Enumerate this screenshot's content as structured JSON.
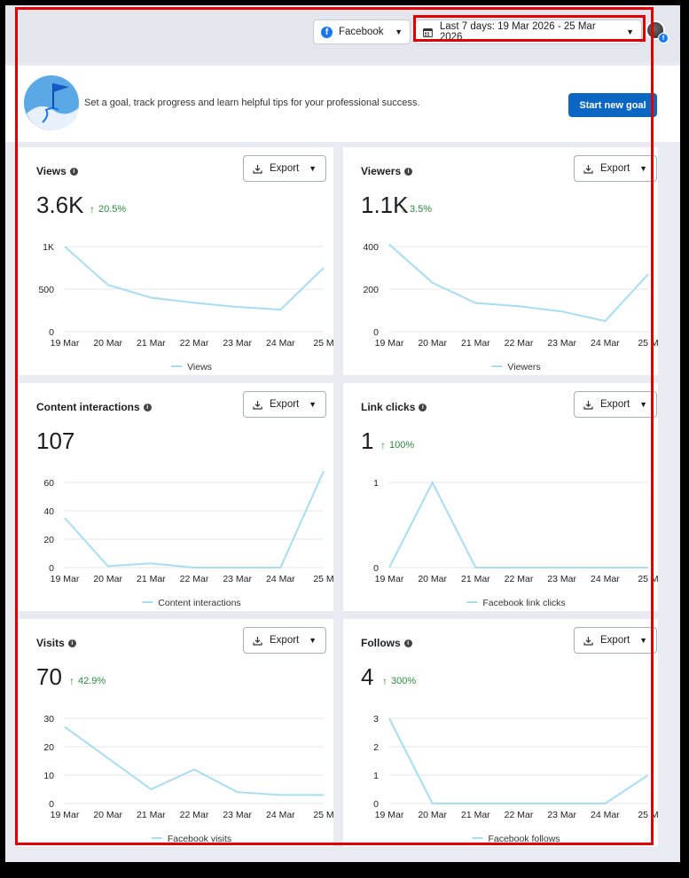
{
  "toolbar": {
    "platform_label": "Facebook",
    "date_range_label": "Last 7 days: 19 Mar 2026 - 25 Mar 2026"
  },
  "goal_banner": {
    "text": "Set a goal, track progress and learn helpful tips for your professional success.",
    "button_label": "Start new goal"
  },
  "export_label": "Export",
  "icons": {
    "platform": "facebook-icon",
    "calendar": "calendar-icon",
    "dropdown": "caret-down-icon",
    "info": "info-icon",
    "export": "download-icon",
    "trend": "arrow-up-icon"
  },
  "colors": {
    "accent": "#0b66c3",
    "line": "#a8dcf3",
    "positive": "#2b8a3e",
    "highlight": "#e00000"
  },
  "x_categories": [
    "19 Mar",
    "20 Mar",
    "21 Mar",
    "22 Mar",
    "23 Mar",
    "24 Mar",
    "25 M"
  ],
  "metrics": [
    {
      "id": "views",
      "title": "Views",
      "value": "3.6K",
      "delta": "20.5%",
      "chart_data": {
        "type": "line",
        "categories": [
          "19 Mar",
          "20 Mar",
          "21 Mar",
          "22 Mar",
          "23 Mar",
          "24 Mar",
          "25 M"
        ],
        "series": [
          {
            "name": "Views",
            "values": [
              1000,
              550,
              400,
              340,
              290,
              260,
              750
            ]
          }
        ],
        "yticks": [
          0,
          500,
          1000
        ],
        "ytick_labels": [
          "0",
          "500",
          "1K"
        ],
        "ylim": [
          0,
          1000
        ],
        "grid": true,
        "legend": "bottom"
      }
    },
    {
      "id": "viewers",
      "title": "Viewers",
      "value": "1.1K",
      "delta": "3.5%",
      "chart_data": {
        "type": "line",
        "categories": [
          "19 Mar",
          "20 Mar",
          "21 Mar",
          "22 Mar",
          "23 Mar",
          "24 Mar",
          "25 M"
        ],
        "series": [
          {
            "name": "Viewers",
            "values": [
              410,
              230,
              135,
              120,
              95,
              50,
              270
            ]
          }
        ],
        "yticks": [
          0,
          200,
          400
        ],
        "ytick_labels": [
          "0",
          "200",
          "400"
        ],
        "ylim": [
          0,
          400
        ],
        "grid": true,
        "legend": "bottom"
      }
    },
    {
      "id": "content-interactions",
      "title": "Content interactions",
      "value": "107",
      "delta": "",
      "chart_data": {
        "type": "line",
        "categories": [
          "19 Mar",
          "20 Mar",
          "21 Mar",
          "22 Mar",
          "23 Mar",
          "24 Mar",
          "25 M"
        ],
        "series": [
          {
            "name": "Content interactions",
            "values": [
              35,
              1,
              3,
              0,
              0,
              0,
              68
            ]
          }
        ],
        "yticks": [
          0,
          20,
          40,
          60
        ],
        "ytick_labels": [
          "0",
          "20",
          "40",
          "60"
        ],
        "ylim": [
          0,
          60
        ],
        "grid": true,
        "legend": "bottom"
      }
    },
    {
      "id": "link-clicks",
      "title": "Link clicks",
      "value": "1",
      "delta": "100%",
      "chart_data": {
        "type": "line",
        "categories": [
          "19 Mar",
          "20 Mar",
          "21 Mar",
          "22 Mar",
          "23 Mar",
          "24 Mar",
          "25 M"
        ],
        "series": [
          {
            "name": "Facebook link clicks",
            "values": [
              0,
              1,
              0,
              0,
              0,
              0,
              0
            ]
          }
        ],
        "yticks": [
          0,
          1
        ],
        "ytick_labels": [
          "0",
          "1"
        ],
        "ylim": [
          0,
          1
        ],
        "grid": true,
        "legend": "bottom"
      }
    },
    {
      "id": "visits",
      "title": "Visits",
      "value": "70",
      "delta": "42.9%",
      "chart_data": {
        "type": "line",
        "categories": [
          "19 Mar",
          "20 Mar",
          "21 Mar",
          "22 Mar",
          "23 Mar",
          "24 Mar",
          "25 M"
        ],
        "series": [
          {
            "name": "Facebook visits",
            "values": [
              27,
              16,
              5,
              12,
              4,
              3,
              3
            ]
          }
        ],
        "yticks": [
          0,
          10,
          20,
          30
        ],
        "ytick_labels": [
          "0",
          "10",
          "20",
          "30"
        ],
        "ylim": [
          0,
          30
        ],
        "grid": true,
        "legend": "bottom"
      }
    },
    {
      "id": "follows",
      "title": "Follows",
      "value": "4",
      "delta": "300%",
      "chart_data": {
        "type": "line",
        "categories": [
          "19 Mar",
          "20 Mar",
          "21 Mar",
          "22 Mar",
          "23 Mar",
          "24 Mar",
          "25 M"
        ],
        "series": [
          {
            "name": "Facebook follows",
            "values": [
              3,
              0,
              0,
              0,
              0,
              0,
              1
            ]
          }
        ],
        "yticks": [
          0,
          1,
          2,
          3
        ],
        "ytick_labels": [
          "0",
          "1",
          "2",
          "3"
        ],
        "ylim": [
          0,
          3
        ],
        "grid": true,
        "legend": "bottom"
      }
    }
  ]
}
